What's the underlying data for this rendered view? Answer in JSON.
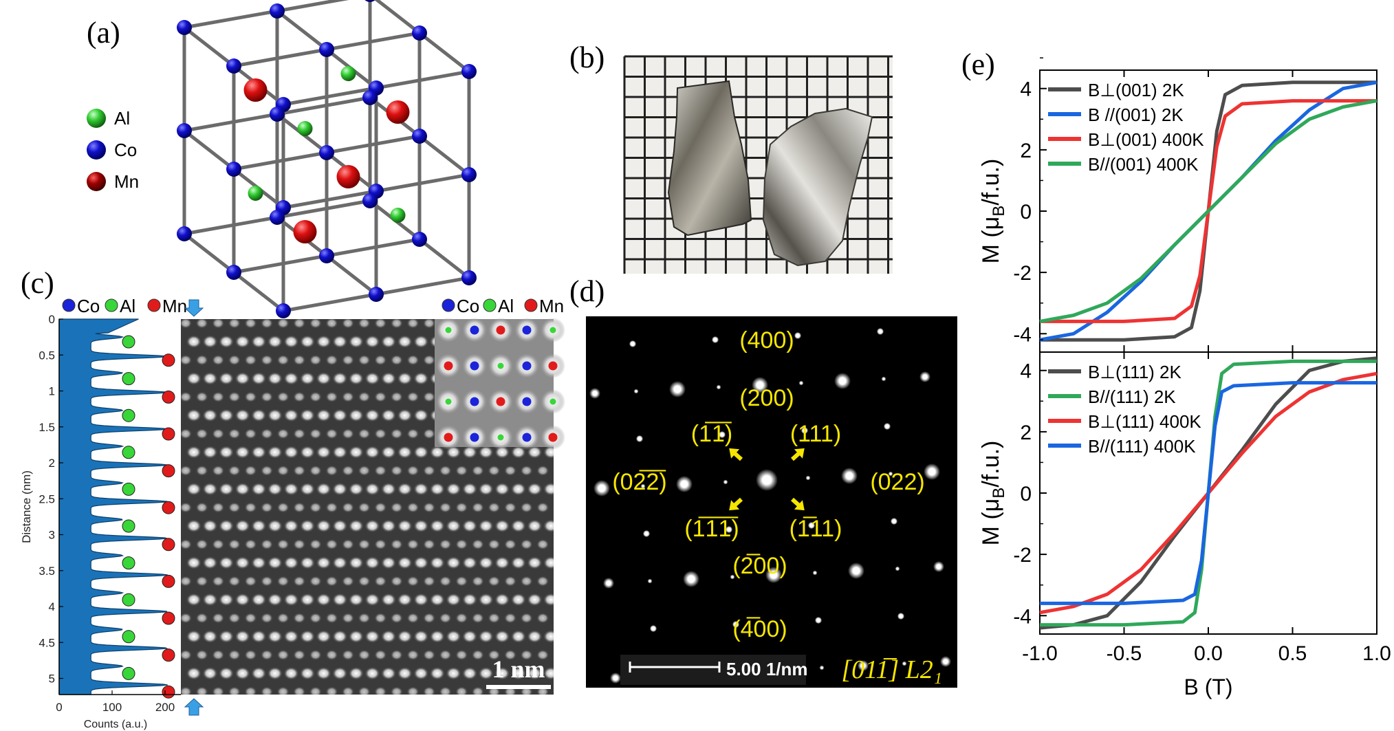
{
  "panels": {
    "a": {
      "label": "(a)",
      "legend": [
        {
          "name": "Al",
          "color": "#33cc33"
        },
        {
          "name": "Co",
          "color": "#1010cc"
        },
        {
          "name": "Mn",
          "color": "#cc1010"
        }
      ]
    },
    "b": {
      "label": "(b)"
    },
    "c": {
      "label": "(c)",
      "legend": [
        {
          "name": "Co",
          "color": "#1b24d8"
        },
        {
          "name": "Al",
          "color": "#39d639"
        },
        {
          "name": "Mn",
          "color": "#e11b1b"
        }
      ],
      "inset_legend": [
        {
          "name": "Co",
          "color": "#1b24d8"
        },
        {
          "name": "Al",
          "color": "#39d639"
        },
        {
          "name": "Mn",
          "color": "#e11b1b"
        }
      ],
      "ylabel": "Distance (nm)",
      "xlabel": "Counts (a.u.)",
      "yticks": [
        "0",
        "0.5",
        "1",
        "1.5",
        "2",
        "2.5",
        "3",
        "3.5",
        "4",
        "4.5",
        "5"
      ],
      "xticks": [
        "0",
        "100",
        "200"
      ],
      "scalebar": "1 nm",
      "profile_color": "#1a73b8",
      "profile_peaks_nm": [
        0.25,
        0.52,
        0.75,
        1.02,
        1.27,
        1.53,
        1.77,
        2.03,
        2.28,
        2.54,
        2.79,
        3.05,
        3.29,
        3.56,
        3.81,
        4.07,
        4.32,
        4.58,
        4.83,
        5.09
      ],
      "column_sequence": [
        "Al",
        "Mn",
        "Al",
        "Mn",
        "Al",
        "Mn",
        "Al",
        "Mn",
        "Al",
        "Mn",
        "Al",
        "Mn",
        "Al",
        "Mn",
        "Al",
        "Mn",
        "Al",
        "Mn",
        "Al",
        "Mn",
        "Al",
        "Mn",
        "Al",
        "Mn",
        "Al",
        "Mn",
        "Al",
        "Mn",
        "Al",
        "Mn",
        "Al",
        "Mn",
        "Al",
        "Mn",
        "Al",
        "Mn",
        "Al",
        "Mn",
        "Al",
        "Mn",
        "Al"
      ]
    },
    "d": {
      "label": "(d)",
      "spots": {
        "s400": "(400)",
        "s200": "(200)",
        "s1m1m1": "(1̅1̅)",
        "s111": "(111)",
        "s0m2m2": "(02̅2̅)",
        "s022": "(022)",
        "sm1m1m1": "(1̅1̅1̅)",
        "sm111": "(1̅11)",
        "sm200": "(2̅00)",
        "sm400": "(4̅00)"
      },
      "scalebar": "5.00 1/nm",
      "zone_axis": "[011̅] L2₁"
    },
    "e": {
      "label": "(e)",
      "ylabel": "M (μB/f.u.)",
      "xlabel": "B (T)"
    }
  },
  "chart_data": [
    {
      "type": "line",
      "title": "",
      "xlabel": "B (T)",
      "ylabel": "M (μB/f.u.)",
      "xlim": [
        -1.0,
        1.0
      ],
      "ylim": [
        -4.6,
        4.6
      ],
      "xticks": [
        -1.0,
        -0.5,
        0.0,
        0.5,
        1.0
      ],
      "yticks": [
        -4,
        -2,
        0,
        2,
        4
      ],
      "grid": false,
      "legend_position": "top-left",
      "series": [
        {
          "name": "B⊥(001) 2K",
          "color": "#4d4d4d",
          "x": [
            -1.0,
            -0.5,
            -0.2,
            -0.1,
            -0.05,
            0.0,
            0.05,
            0.1,
            0.2,
            0.5,
            1.0
          ],
          "y": [
            -4.2,
            -4.2,
            -4.1,
            -3.8,
            -2.6,
            0.0,
            2.6,
            3.8,
            4.1,
            4.2,
            4.2
          ]
        },
        {
          "name": "B //(001) 2K",
          "color": "#1a66e0",
          "x": [
            -1.0,
            -0.8,
            -0.6,
            -0.4,
            -0.2,
            0.0,
            0.2,
            0.4,
            0.6,
            0.8,
            1.0
          ],
          "y": [
            -4.2,
            -4.0,
            -3.3,
            -2.3,
            -1.1,
            0.0,
            1.1,
            2.3,
            3.3,
            4.0,
            4.2
          ]
        },
        {
          "name": "B⊥(001) 400K",
          "color": "#ee3333",
          "x": [
            -1.0,
            -0.5,
            -0.2,
            -0.1,
            -0.05,
            0.0,
            0.05,
            0.1,
            0.2,
            0.5,
            1.0
          ],
          "y": [
            -3.6,
            -3.6,
            -3.5,
            -3.1,
            -2.1,
            0.0,
            2.1,
            3.1,
            3.5,
            3.6,
            3.6
          ]
        },
        {
          "name": "B//(001) 400K",
          "color": "#2fa85a",
          "x": [
            -1.0,
            -0.8,
            -0.6,
            -0.4,
            -0.2,
            0.0,
            0.2,
            0.4,
            0.6,
            0.8,
            1.0
          ],
          "y": [
            -3.6,
            -3.4,
            -3.0,
            -2.2,
            -1.1,
            0.0,
            1.1,
            2.2,
            3.0,
            3.4,
            3.6
          ]
        }
      ]
    },
    {
      "type": "line",
      "title": "",
      "xlabel": "B (T)",
      "ylabel": "M (μB/f.u.)",
      "xlim": [
        -1.0,
        1.0
      ],
      "ylim": [
        -4.6,
        4.6
      ],
      "xticks": [
        -1.0,
        -0.5,
        0.0,
        0.5,
        1.0
      ],
      "yticks": [
        -4,
        -2,
        0,
        2,
        4
      ],
      "grid": false,
      "legend_position": "top-left",
      "series": [
        {
          "name": "B⊥(111) 2K",
          "color": "#4d4d4d",
          "x": [
            -1.0,
            -0.8,
            -0.6,
            -0.4,
            -0.2,
            0.0,
            0.2,
            0.4,
            0.6,
            0.8,
            1.0
          ],
          "y": [
            -4.4,
            -4.3,
            -4.0,
            -2.9,
            -1.4,
            0.0,
            1.4,
            2.9,
            4.0,
            4.3,
            4.4
          ]
        },
        {
          "name": "B//(111) 2K",
          "color": "#2fa85a",
          "x": [
            -1.0,
            -0.5,
            -0.15,
            -0.08,
            -0.04,
            0.0,
            0.04,
            0.08,
            0.15,
            0.5,
            1.0
          ],
          "y": [
            -4.3,
            -4.3,
            -4.2,
            -3.9,
            -2.5,
            0.0,
            2.5,
            3.9,
            4.2,
            4.3,
            4.3
          ]
        },
        {
          "name": "B⊥(111) 400K",
          "color": "#ee3333",
          "x": [
            -1.0,
            -0.8,
            -0.6,
            -0.4,
            -0.2,
            0.0,
            0.2,
            0.4,
            0.6,
            0.8,
            1.0
          ],
          "y": [
            -3.9,
            -3.7,
            -3.3,
            -2.5,
            -1.3,
            0.0,
            1.3,
            2.5,
            3.3,
            3.7,
            3.9
          ]
        },
        {
          "name": "B//(111) 400K",
          "color": "#1a66e0",
          "x": [
            -1.0,
            -0.5,
            -0.15,
            -0.08,
            -0.04,
            0.0,
            0.04,
            0.08,
            0.15,
            0.5,
            1.0
          ],
          "y": [
            -3.6,
            -3.6,
            -3.5,
            -3.3,
            -2.2,
            0.0,
            2.2,
            3.3,
            3.5,
            3.6,
            3.6
          ]
        }
      ]
    }
  ]
}
